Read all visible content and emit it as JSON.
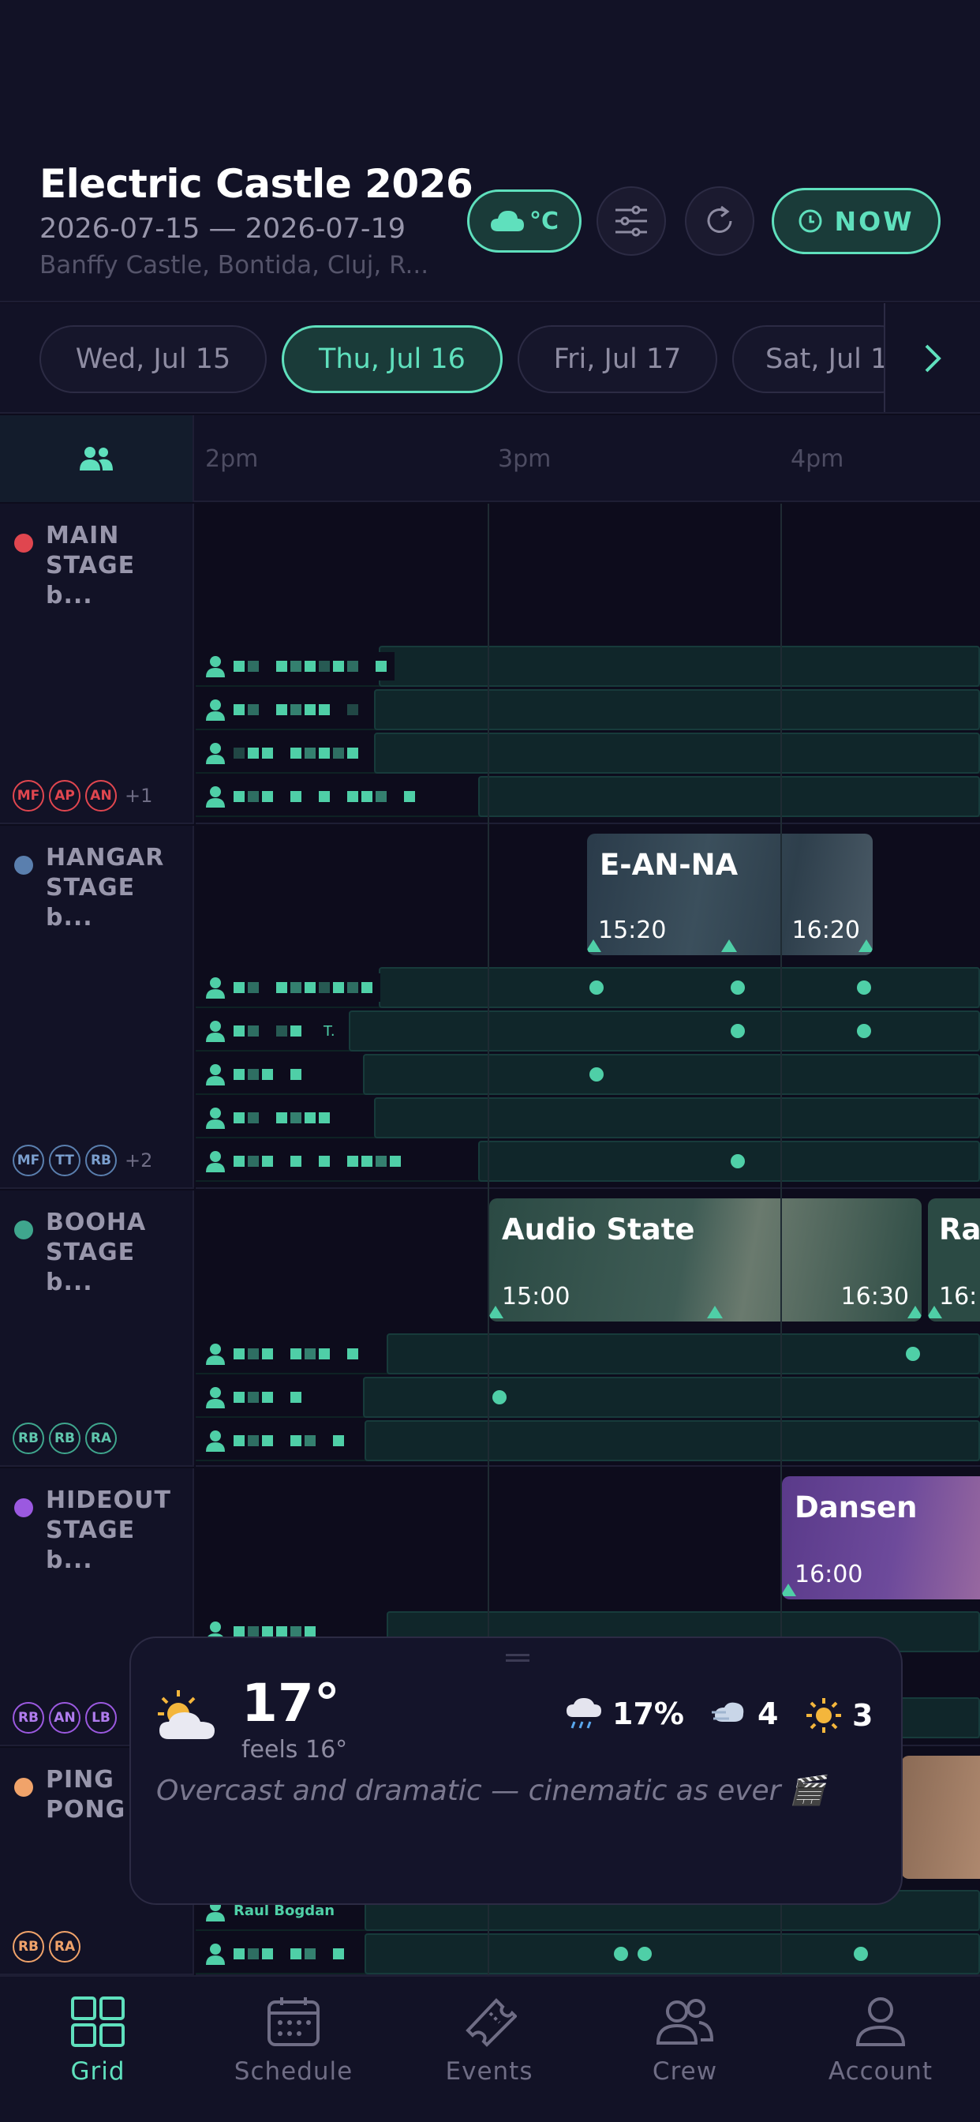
{
  "header": {
    "title": "Electric Castle 2026",
    "dates": "2026-07-15 — 2026-07-19",
    "venue": "Banffy Castle, Bontida, Cluj, R...",
    "weather_toggle_label": "°C",
    "now_label": "NOW"
  },
  "days": [
    "Wed, Jul 15",
    "Thu, Jul 16",
    "Fri, Jul 17",
    "Sat, Jul 18"
  ],
  "active_day": "Thu, Jul 16",
  "timeline": {
    "labels": [
      "2pm",
      "3pm",
      "4pm"
    ]
  },
  "stages": [
    {
      "name": "MAIN STAGE b...",
      "color": "#e0464f",
      "badges": [
        "MF",
        "AP",
        "AN"
      ],
      "more": "+1"
    },
    {
      "name": "HANGAR STAGE b...",
      "color": "#5a7fae",
      "badges": [
        "MF",
        "TT",
        "RB"
      ],
      "more": "+2"
    },
    {
      "name": "BOOHA STAGE b...",
      "color": "#3fa68d",
      "badges": [
        "RB",
        "RB",
        "RA"
      ],
      "more": ""
    },
    {
      "name": "HIDEOUT STAGE b...",
      "color": "#9b59e0",
      "badges": [
        "RB",
        "AN",
        "LB"
      ],
      "more": ""
    },
    {
      "name": "PING PONG",
      "color": "#f0a36a",
      "badges": [
        "RB",
        "RA"
      ],
      "more": ""
    }
  ],
  "events": {
    "eanna": {
      "name": "E-AN-NA",
      "start": "15:20",
      "end": "16:20"
    },
    "audio_state": {
      "name": "Audio State",
      "start": "15:00",
      "end": "16:30"
    },
    "next_booha": {
      "name": "Ra",
      "start": "16:"
    },
    "dansen": {
      "name": "Dansen",
      "start": "16:00"
    }
  },
  "crew_visible_name": "Raul Bogdan",
  "crew_hangar_initial": "T.",
  "weather": {
    "temp": "17°",
    "feels": "feels 16°",
    "rain": "17%",
    "wind": "4",
    "uv": "3",
    "description": "Overcast and dramatic — cinematic as ever 🎬",
    "icon": "partly-cloudy-icon"
  },
  "nav": [
    {
      "label": "Grid",
      "icon": "grid-icon",
      "active": true
    },
    {
      "label": "Schedule",
      "icon": "calendar-icon",
      "active": false
    },
    {
      "label": "Events",
      "icon": "ticket-icon",
      "active": false
    },
    {
      "label": "Crew",
      "icon": "crew-icon",
      "active": false
    },
    {
      "label": "Account",
      "icon": "account-icon",
      "active": false
    }
  ],
  "colors": {
    "accent": "#5fe0bd",
    "background": "#0d0c1c",
    "panel": "#121226"
  }
}
